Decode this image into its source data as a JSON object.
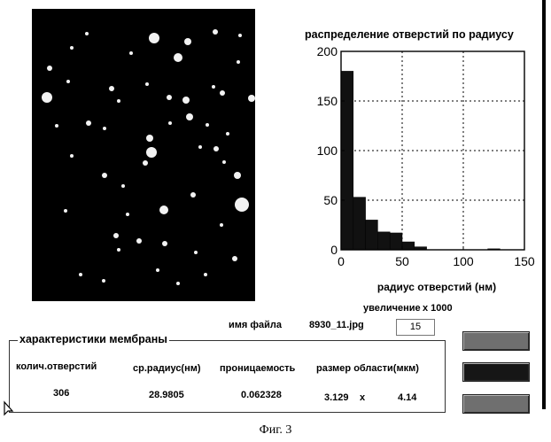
{
  "histogram": {
    "title": "распределение отверстий по радиусу",
    "xlabel": "радиус отверстий (нм)"
  },
  "chart_data": {
    "type": "bar",
    "title": "распределение отверстий по радиусу",
    "xlabel": "радиус отверстий (нм)",
    "ylabel": "",
    "xlim": [
      0,
      150
    ],
    "ylim": [
      0,
      200
    ],
    "xticks": [
      0,
      50,
      100,
      150
    ],
    "yticks": [
      0,
      50,
      100,
      150,
      200
    ],
    "grid": true,
    "bin_width": 10,
    "bins": [
      {
        "x0": 0,
        "x1": 10,
        "value": 180
      },
      {
        "x0": 10,
        "x1": 20,
        "value": 53
      },
      {
        "x0": 20,
        "x1": 30,
        "value": 30
      },
      {
        "x0": 30,
        "x1": 40,
        "value": 18
      },
      {
        "x0": 40,
        "x1": 50,
        "value": 17
      },
      {
        "x0": 50,
        "x1": 60,
        "value": 8
      },
      {
        "x0": 60,
        "x1": 70,
        "value": 3
      },
      {
        "x0": 70,
        "x1": 80,
        "value": 0
      },
      {
        "x0": 80,
        "x1": 90,
        "value": 0
      },
      {
        "x0": 90,
        "x1": 100,
        "value": 0
      },
      {
        "x0": 100,
        "x1": 110,
        "value": 0
      },
      {
        "x0": 110,
        "x1": 120,
        "value": 0
      },
      {
        "x0": 120,
        "x1": 130,
        "value": 1
      },
      {
        "x0": 130,
        "x1": 140,
        "value": 0
      }
    ]
  },
  "file": {
    "name_label": "имя файла",
    "name_value": "8930_11.jpg"
  },
  "zoom": {
    "label": "увеличение",
    "value_text": "x 1000",
    "input_value": "15"
  },
  "membrane": {
    "group_title": "характеристики мембраны",
    "holes_label": "колич.отверстий",
    "holes_value": "306",
    "radius_label": "ср.радиус(нм)",
    "radius_value": "28.9805",
    "permeability_label": "проницаемость",
    "permeability_value": "0.062328",
    "area_label": "размер области(мкм)",
    "area_w": "3.129",
    "area_x": "x",
    "area_h": "4.14"
  },
  "caption": "Фиг. 3"
}
